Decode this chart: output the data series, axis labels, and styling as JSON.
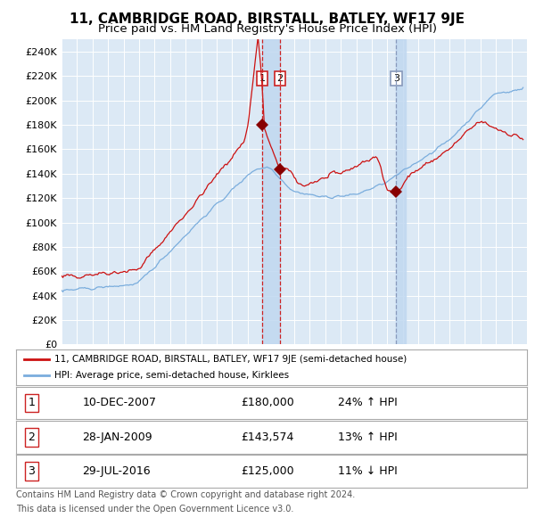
{
  "title": "11, CAMBRIDGE ROAD, BIRSTALL, BATLEY, WF17 9JE",
  "subtitle": "Price paid vs. HM Land Registry's House Price Index (HPI)",
  "title_fontsize": 11,
  "subtitle_fontsize": 9.5,
  "bg_color": "#dce9f5",
  "grid_color": "#ffffff",
  "sale_dates": [
    "2007-12-10",
    "2009-01-28",
    "2016-07-29"
  ],
  "sale_prices": [
    180000,
    143574,
    125000
  ],
  "sale_labels": [
    "1",
    "2",
    "3"
  ],
  "sale_pct_changes": [
    "24% ↑ HPI",
    "13% ↑ HPI",
    "11% ↓ HPI"
  ],
  "sale_date_strs": [
    "10-DEC-2007",
    "28-JAN-2009",
    "29-JUL-2016"
  ],
  "legend_line1": "11, CAMBRIDGE ROAD, BIRSTALL, BATLEY, WF17 9JE (semi-detached house)",
  "legend_line2": "HPI: Average price, semi-detached house, Kirklees",
  "red_line_color": "#cc1111",
  "blue_line_color": "#7aaddd",
  "marker_color": "#880000",
  "footer1": "Contains HM Land Registry data © Crown copyright and database right 2024.",
  "footer2": "This data is licensed under the Open Government Licence v3.0.",
  "ylim_max": 250000,
  "ylim_min": 0,
  "ylabel_step": 20000,
  "xlabel_start_year": 1995,
  "xlabel_end_year": 2024,
  "span_color": "#c0d8f0",
  "vline_red": "#cc2222",
  "vline_blue": "#8899bb"
}
